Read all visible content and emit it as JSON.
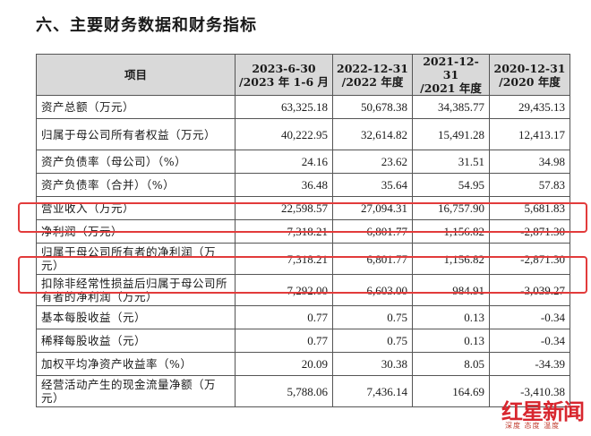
{
  "heading": "六、主要财务数据和财务指标",
  "table": {
    "headers": [
      {
        "label": "项目"
      },
      {
        "line1": "2023-6-30",
        "line2": "/2023 年 1-6 月"
      },
      {
        "line1": "2022-12-31",
        "line2": "/2022 年度"
      },
      {
        "line1": "2021-12-31",
        "line2": "/2021 年度"
      },
      {
        "line1": "2020-12-31",
        "line2": "/2020 年度"
      }
    ],
    "rows": [
      {
        "label": "资产总额（万元）",
        "values": [
          "63,325.18",
          "50,678.38",
          "34,385.77",
          "29,435.13"
        ]
      },
      {
        "label": "归属于母公司所有者权益（万元）",
        "values": [
          "40,222.95",
          "32,614.82",
          "15,491.28",
          "12,413.17"
        ]
      },
      {
        "label": "资产负债率（母公司）（%）",
        "values": [
          "24.16",
          "23.62",
          "31.51",
          "34.98"
        ]
      },
      {
        "label": "资产负债率（合并）（%）",
        "values": [
          "36.48",
          "35.64",
          "54.95",
          "57.83"
        ]
      },
      {
        "label": "营业收入（万元）",
        "values": [
          "22,598.57",
          "27,094.31",
          "16,757.90",
          "5,681.83"
        ]
      },
      {
        "label": "净利润（万元）",
        "values": [
          "7,318.21",
          "6,801.77",
          "1,156.82",
          "-2,871.30"
        ]
      },
      {
        "label": "归属于母公司所有者的净利润（万元）",
        "values": [
          "7,318.21",
          "6,801.77",
          "1,156.82",
          "-2,871.30"
        ]
      },
      {
        "label": "扣除非经常性损益后归属于母公司所有者的净利润（万元）",
        "values": [
          "7,292.00",
          "6,603.00",
          "984.91",
          "-3,039.27"
        ]
      },
      {
        "label": "基本每股收益（元）",
        "values": [
          "0.77",
          "0.75",
          "0.13",
          "-0.34"
        ]
      },
      {
        "label": "稀释每股收益（元）",
        "values": [
          "0.77",
          "0.75",
          "0.13",
          "-0.34"
        ]
      },
      {
        "label": "加权平均净资产收益率（%）",
        "values": [
          "20.09",
          "30.38",
          "8.05",
          "-34.39"
        ]
      },
      {
        "label": "经营活动产生的现金流量净额（万元）",
        "values": [
          "5,788.06",
          "7,436.14",
          "164.69",
          "-3,410.38"
        ]
      }
    ]
  },
  "highlight_color": "#e23b3b",
  "header_bg": "#d9d9d9",
  "watermark": {
    "logo": "红星新闻",
    "sub": "深度 态度 温度"
  }
}
